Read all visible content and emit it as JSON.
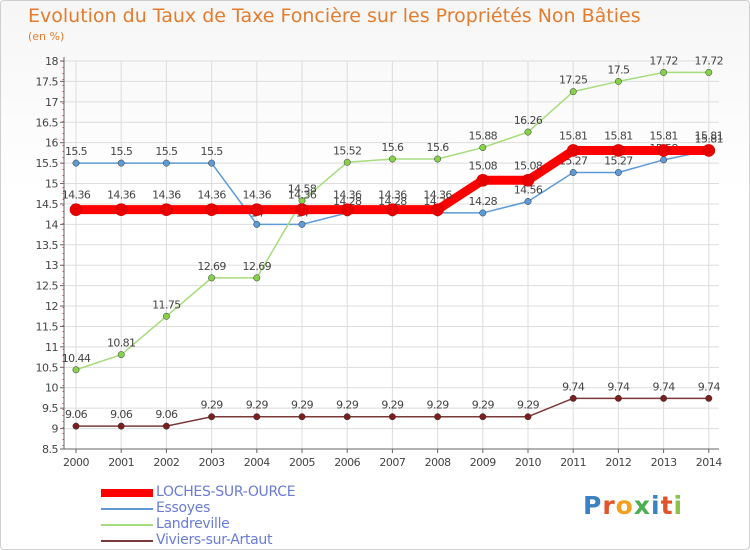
{
  "header": {
    "title": "Evolution du Taux de Taxe Foncière sur les Propriétés Non Bâties",
    "unit": "(en %)"
  },
  "colors": {
    "title": "#e27c2e",
    "grid": "#dddddd",
    "axis": "#666666",
    "label": "#444444",
    "legend_text": "#6b7bd6"
  },
  "logo": {
    "text": "Proxiti"
  },
  "chart_data": {
    "type": "line",
    "title": "Evolution du Taux de Taxe Foncière sur les Propriétés Non Bâties",
    "ylabel": "(en %)",
    "xlabel": "",
    "ylim": [
      8.5,
      18
    ],
    "ytick_step": 0.5,
    "grid": true,
    "legend_position": "bottom-left",
    "categories": [
      "2000",
      "2001",
      "2002",
      "2003",
      "2004",
      "2005",
      "2006",
      "2007",
      "2008",
      "2009",
      "2010",
      "2011",
      "2012",
      "2013",
      "2014"
    ],
    "series": [
      {
        "name": "Essoyes",
        "color": "#5d9ad6",
        "marker": "#5d9ad6",
        "values": [
          15.5,
          15.5,
          15.5,
          15.5,
          14,
          14,
          14.28,
          14.28,
          14.28,
          14.28,
          14.56,
          15.27,
          15.27,
          15.58,
          15.81
        ],
        "labels": [
          "15.5",
          "15.5",
          "15.5",
          "15.5",
          "14",
          "14",
          "14.28",
          "14.28",
          "14.28",
          "14.28",
          "14.56",
          "15.27",
          "15.27",
          "15.58",
          "15.81"
        ]
      },
      {
        "name": "Landreville",
        "color": "#a6dc7c",
        "marker": "#86d04a",
        "values": [
          10.44,
          10.81,
          11.75,
          12.69,
          12.69,
          14.58,
          15.52,
          15.6,
          15.6,
          15.88,
          16.26,
          17.25,
          17.5,
          17.72,
          17.72
        ],
        "labels": [
          "10.44",
          "10.81",
          "11.75",
          "12.69",
          "12.69",
          "14.58",
          "15.52",
          "15.6",
          "15.6",
          "15.88",
          "16.26",
          "17.25",
          "17.5",
          "17.72",
          "17.72"
        ]
      },
      {
        "name": "Viviers-sur-Artaut",
        "color": "#7b3a3a",
        "marker": "#7a1e1e",
        "values": [
          9.06,
          9.06,
          9.06,
          9.29,
          9.29,
          9.29,
          9.29,
          9.29,
          9.29,
          9.29,
          9.29,
          9.74,
          9.74,
          9.74,
          9.74
        ],
        "labels": [
          "9.06",
          "9.06",
          "9.06",
          "9.29",
          "9.29",
          "9.29",
          "9.29",
          "9.29",
          "9.29",
          "9.29",
          "9.29",
          "9.74",
          "9.74",
          "9.74",
          "9.74"
        ]
      },
      {
        "name": "LOCHES-SUR-OURCE",
        "color": "#ff0000",
        "marker": "#e60000",
        "values": [
          14.36,
          14.36,
          14.36,
          14.36,
          14.36,
          14.36,
          14.36,
          14.36,
          14.36,
          15.08,
          15.08,
          15.81,
          15.81,
          15.81,
          15.81
        ],
        "labels": [
          "14.36",
          "14.36",
          "14.36",
          "14.36",
          "14.36",
          "14.36",
          "14.36",
          "14.36",
          "14.36",
          "15.08",
          "15.08",
          "15.81",
          "15.81",
          "15.81",
          "15.81"
        ]
      }
    ],
    "legend": [
      "LOCHES-SUR-OURCE",
      "Essoyes",
      "Landreville",
      "Viviers-sur-Artaut"
    ]
  }
}
